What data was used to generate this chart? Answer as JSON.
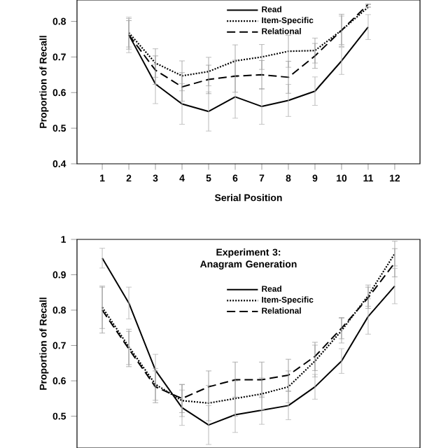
{
  "chart_data": [
    {
      "type": "line",
      "xlabel": "Serial Position",
      "ylabel": "Proportion of Recall",
      "categories": [
        "1",
        "2",
        "3",
        "4",
        "5",
        "6",
        "7",
        "8",
        "9",
        "10",
        "11",
        "12"
      ],
      "ylim": [
        0.4,
        0.86
      ],
      "yticks": [
        0.4,
        0.5,
        0.6,
        0.7,
        0.8
      ],
      "legend": "top",
      "grid": false,
      "marker": "none",
      "series": [
        {
          "name": "Read",
          "color": "#000000",
          "line_style": "solid",
          "values": [
            null,
            0.762,
            0.624,
            0.568,
            0.547,
            0.588,
            0.561,
            0.578,
            0.604,
            0.689,
            0.784,
            null
          ],
          "errors": [
            null,
            0.05,
            0.055,
            0.057,
            0.055,
            0.06,
            0.05,
            0.045,
            0.04,
            0.038,
            0.035,
            null
          ]
        },
        {
          "name": "Item-Specific",
          "color": "#000000",
          "line_style": "dotted",
          "values": [
            null,
            0.768,
            0.683,
            0.647,
            0.659,
            0.689,
            0.7,
            0.716,
            0.718,
            0.775,
            0.84,
            null
          ],
          "errors": [
            null,
            0.04,
            0.04,
            0.042,
            0.04,
            0.045,
            0.035,
            0.045,
            0.035,
            0.04,
            null,
            null
          ]
        },
        {
          "name": "Relational",
          "color": "#000000",
          "line_style": "dashed",
          "values": [
            null,
            0.762,
            0.663,
            0.616,
            0.637,
            0.646,
            0.65,
            0.643,
            0.703,
            0.775,
            0.848,
            null
          ],
          "errors": [
            null,
            0.04,
            0.04,
            0.04,
            0.04,
            0.045,
            0.04,
            0.045,
            0.035,
            0.045,
            null,
            null
          ]
        }
      ]
    },
    {
      "type": "line",
      "title": "Experiment 3: Anagram Generation",
      "ylabel": "Proportion of Recall",
      "categories": [
        "1",
        "2",
        "3",
        "4",
        "5",
        "6",
        "7",
        "8",
        "9",
        "10",
        "11",
        "12"
      ],
      "ylim": [
        0.41,
        1
      ],
      "yticks": [
        0.5,
        0.6,
        0.7,
        0.8,
        0.9,
        1
      ],
      "tick_labels": "y",
      "legend": "top",
      "grid": false,
      "marker": "none",
      "series": [
        {
          "name": "Read",
          "color": "#000000",
          "line_style": "solid",
          "values": [
            0.947,
            0.82,
            0.63,
            0.524,
            0.475,
            0.504,
            0.517,
            0.53,
            0.583,
            0.656,
            0.782,
            0.868
          ],
          "errors": [
            0.028,
            0.045,
            0.045,
            0.05,
            0.055,
            0.05,
            0.04,
            0.04,
            0.035,
            0.035,
            0.05,
            0.05
          ]
        },
        {
          "name": "Item-Specific",
          "color": "#000000",
          "line_style": "dotted",
          "values": [
            0.808,
            0.696,
            0.59,
            0.544,
            0.537,
            0.55,
            0.563,
            0.583,
            0.656,
            0.742,
            0.841,
            0.96
          ],
          "errors": [
            0.06,
            0.05,
            0.045,
            0.045,
            0.05,
            0.05,
            0.045,
            0.045,
            0.045,
            0.035,
            0.03,
            0.035
          ]
        },
        {
          "name": "Relational",
          "color": "#000000",
          "line_style": "dashed",
          "values": [
            0.8,
            0.69,
            0.583,
            0.55,
            0.583,
            0.603,
            0.603,
            0.616,
            0.669,
            0.749,
            0.835,
            0.934
          ],
          "errors": [
            0.065,
            0.05,
            0.045,
            0.04,
            0.045,
            0.05,
            0.05,
            0.045,
            0.04,
            0.03,
            0.03,
            0.04
          ]
        }
      ]
    }
  ]
}
